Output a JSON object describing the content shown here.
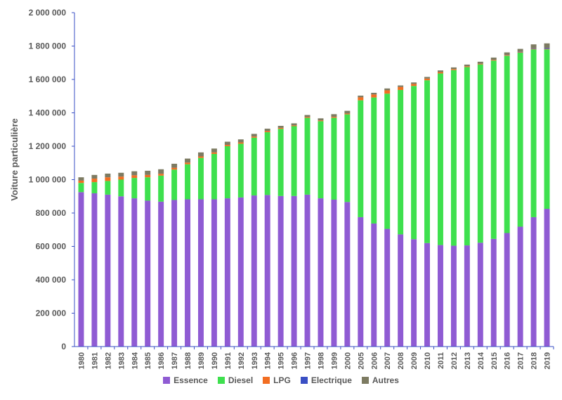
{
  "chart_data": {
    "type": "bar",
    "stacked": true,
    "ylabel": "Voiture particulière",
    "xlabel": "",
    "ylim": [
      0,
      2000000
    ],
    "yticks": [
      0,
      200000,
      400000,
      600000,
      800000,
      1000000,
      1200000,
      1400000,
      1600000,
      1800000,
      2000000
    ],
    "ytick_labels": [
      "0",
      "200 000",
      "400 000",
      "600 000",
      "800 000",
      "1 000 000",
      "1 200 000",
      "1 400 000",
      "1 600 000",
      "1 800 000",
      "2 000 000"
    ],
    "grid": false,
    "legend_position": "bottom",
    "categories": [
      "1980",
      "1981",
      "1982",
      "1983",
      "1984",
      "1985",
      "1986",
      "1987",
      "1988",
      "1989",
      "1990",
      "1991",
      "1992",
      "1993",
      "1994",
      "1995",
      "1996",
      "1997",
      "1998",
      "1999",
      "2000",
      "2005",
      "2006",
      "2007",
      "2008",
      "2009",
      "2010",
      "2011",
      "2012",
      "2013",
      "2014",
      "2015",
      "2016",
      "2017",
      "2018",
      "2019"
    ],
    "series": [
      {
        "name": "Essence",
        "color": "#8f5bd3",
        "values": [
          925000,
          918000,
          910000,
          900000,
          888000,
          874000,
          868000,
          878000,
          882000,
          882000,
          882000,
          888000,
          893000,
          905000,
          908000,
          902000,
          902000,
          910000,
          888000,
          880000,
          866000,
          775000,
          737000,
          705000,
          672000,
          643000,
          620000,
          608000,
          604000,
          606000,
          622000,
          645000,
          680000,
          718000,
          775000,
          825000
        ]
      },
      {
        "name": "Diesel",
        "color": "#3ee04e",
        "values": [
          55000,
          67000,
          82000,
          100000,
          122000,
          140000,
          156000,
          182000,
          210000,
          248000,
          272000,
          312000,
          322000,
          346000,
          376000,
          402000,
          418000,
          460000,
          462000,
          490000,
          525000,
          700000,
          755000,
          810000,
          865000,
          918000,
          975000,
          1028000,
          1052000,
          1068000,
          1068000,
          1068000,
          1062000,
          1042000,
          1005000,
          955000
        ]
      },
      {
        "name": "LPG",
        "color": "#f26e22",
        "values": [
          14000,
          21000,
          22000,
          18000,
          16000,
          14000,
          11000,
          11000,
          10000,
          9000,
          9000,
          8000,
          8000,
          7000,
          7000,
          6000,
          5000,
          5000,
          5000,
          6000,
          5000,
          18000,
          18000,
          20000,
          18000,
          12000,
          10000,
          8000,
          6000,
          5000,
          4000,
          4000,
          4000,
          3000,
          3000,
          3000
        ]
      },
      {
        "name": "Electrique",
        "color": "#3a4fc4",
        "values": [
          0,
          0,
          0,
          0,
          0,
          0,
          0,
          0,
          0,
          0,
          0,
          0,
          0,
          0,
          0,
          0,
          0,
          0,
          0,
          0,
          0,
          0,
          0,
          0,
          0,
          0,
          0,
          0,
          0,
          0,
          0,
          0,
          1000,
          2000,
          3000,
          5000
        ]
      },
      {
        "name": "Autres",
        "color": "#7d7b62",
        "values": [
          20000,
          22000,
          22000,
          23000,
          24000,
          25000,
          27000,
          24000,
          24000,
          24000,
          23000,
          19000,
          18000,
          16000,
          14000,
          12000,
          12000,
          12000,
          12000,
          16000,
          16000,
          10000,
          10000,
          11000,
          9000,
          9000,
          10000,
          10000,
          10000,
          10000,
          12000,
          14000,
          15000,
          18000,
          24000,
          28000
        ]
      }
    ]
  }
}
